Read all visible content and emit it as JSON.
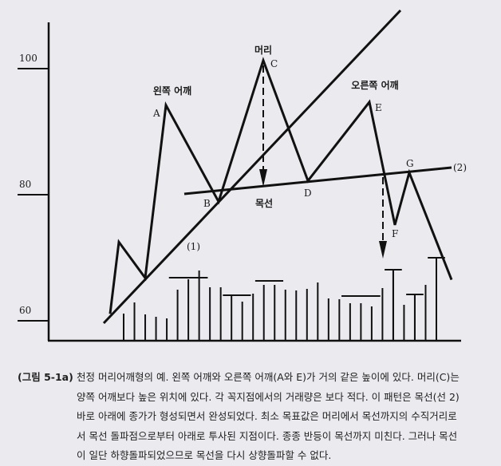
{
  "chart_data": {
    "type": "line",
    "title": "",
    "yticks": [
      "100",
      "80",
      "60"
    ],
    "ytick_values": [
      100,
      80,
      60
    ],
    "price_points": [
      {
        "label": "",
        "value": 61.1
      },
      {
        "label": "",
        "value": 72.5
      },
      {
        "label": "",
        "value": 66.8
      },
      {
        "label": "A",
        "value": 94.2
      },
      {
        "label": "B",
        "value": 78.9
      },
      {
        "label": "C",
        "value": 101.3
      },
      {
        "label": "D",
        "value": 82.2
      },
      {
        "label": "E",
        "value": 94.7
      },
      {
        "label": "F",
        "value": 75.2
      },
      {
        "label": "G",
        "value": 83.5
      },
      {
        "label": "",
        "value": 66.5
      }
    ],
    "volume_relative": [
      33,
      47,
      32,
      29,
      27,
      63,
      76,
      87,
      66,
      66,
      56,
      48,
      58,
      69,
      69,
      63,
      62,
      64,
      72,
      52,
      51,
      46,
      46,
      42,
      65,
      88,
      44,
      57,
      69,
      103
    ],
    "volume_caps": [
      {
        "from": 5,
        "to": 7,
        "level": 78
      },
      {
        "from": 10,
        "to": 11,
        "level": 56
      },
      {
        "from": 13,
        "to": 14,
        "level": 74
      },
      {
        "from": 21,
        "to": 23,
        "level": 55
      },
      {
        "from": 25,
        "to": 25,
        "level": 88
      },
      {
        "from": 27,
        "to": 27,
        "level": 57
      },
      {
        "from": 29,
        "to": 29,
        "level": 103
      }
    ],
    "lines": {
      "trendline": "(1)",
      "neckline": "(2)"
    },
    "annotations": {
      "head": "머리",
      "left_shoulder": "왼쪽 어깨",
      "right_shoulder": "오른쪽 어깨",
      "neckline": "목선"
    },
    "grid": false
  },
  "caption": {
    "figure_number": "(그림 5-1a)",
    "lines": [
      "천정 머리어깨형의 예. 왼쪽 어깨와 오른쪽 어깨(A와 E)가 거의 같은 높이에 있다. 머리(C)는",
      "양쪽 어깨보다 높은 위치에 있다. 각 꼭지점에서의 거래량은 보다 적다. 이 패턴은 목선(선 2)",
      "바로 아래에 종가가 형성되면서 완성되었다. 최소 목표값은 머리에서 목선까지의 수직거리로",
      "서 목선 돌파점으로부터 아래로 투사된 지점이다. 종종 반등이 목선까지 미친다. 그러나 목선",
      "이 일단 하향돌파되었으므로 목선을 다시 상향돌파할 수 없다."
    ]
  }
}
